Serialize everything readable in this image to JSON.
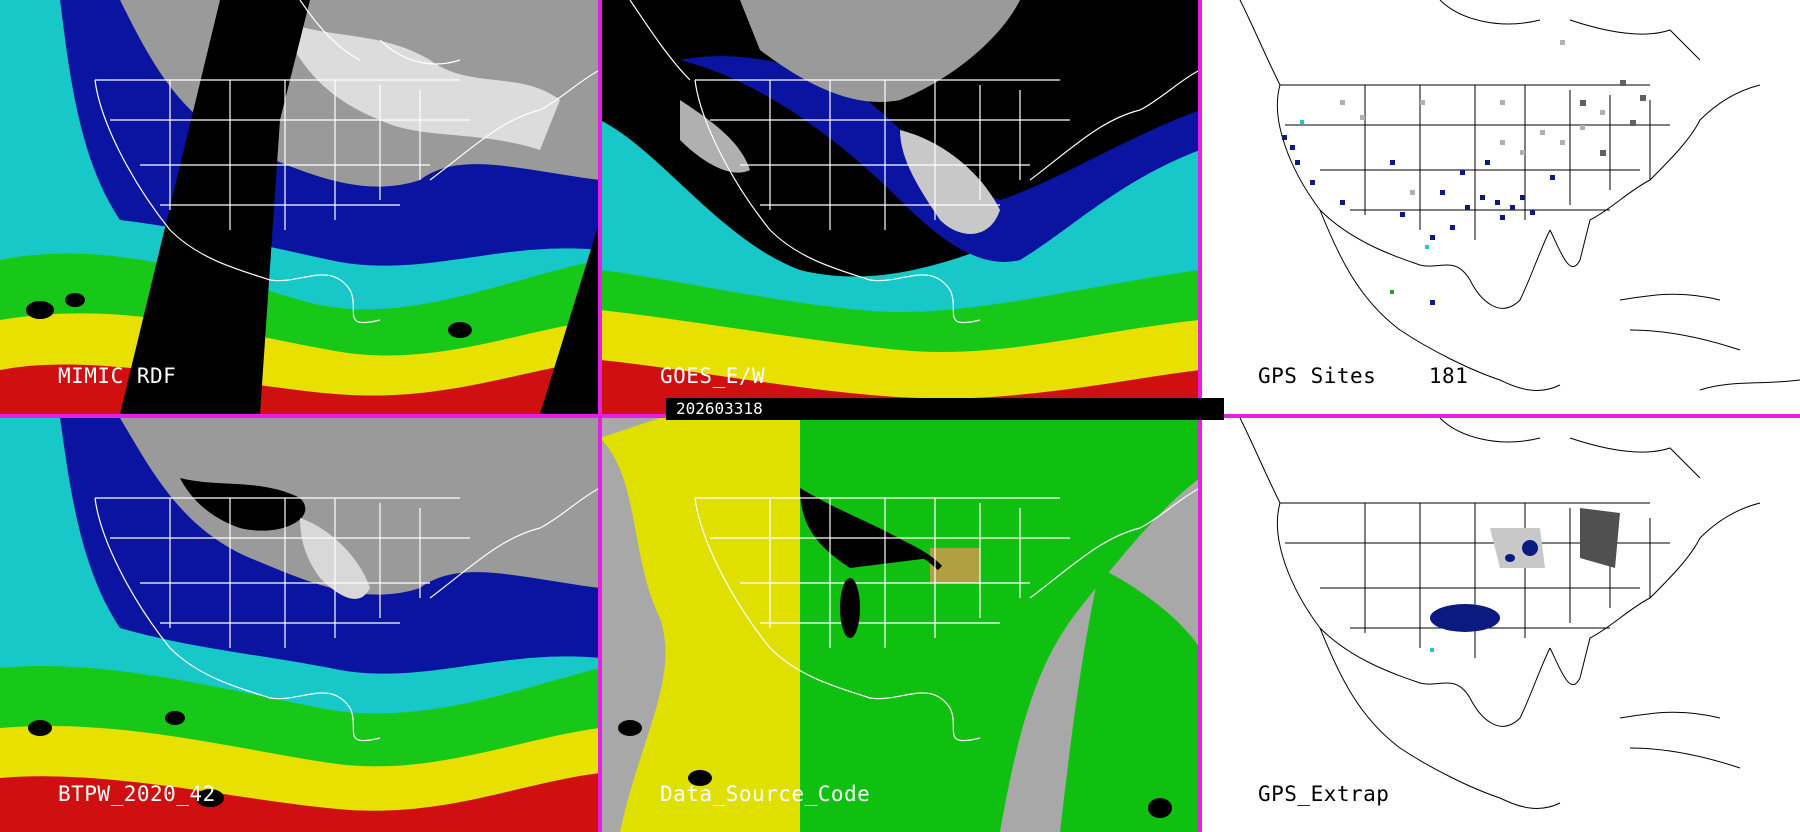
{
  "panels": [
    {
      "id": "p1",
      "label": "MIMIC RDF",
      "style": "moisture-satellite"
    },
    {
      "id": "p2",
      "label": "GOES_E/W",
      "style": "moisture-satellite"
    },
    {
      "id": "p3",
      "label": "GPS Sites    181",
      "style": "gps-sites"
    },
    {
      "id": "p4",
      "label": "BTPW_2020_42",
      "style": "moisture-satellite"
    },
    {
      "id": "p5",
      "label": "Data_Source_Code",
      "style": "source-code"
    },
    {
      "id": "p6",
      "label": "GPS_Extrap",
      "style": "gps-extrap"
    }
  ],
  "timestamp": "202603318",
  "colors": {
    "separator": "#e61fe6",
    "ocean_cyan": "#20d8e0",
    "deep_blue": "#0a14a0",
    "green": "#18c818",
    "yellow": "#e8e000",
    "red": "#d01010",
    "gray_land": "#a0a0a0",
    "source_yellow": "#e0e000",
    "source_green": "#10c010",
    "source_gray": "#a8a8a8"
  }
}
